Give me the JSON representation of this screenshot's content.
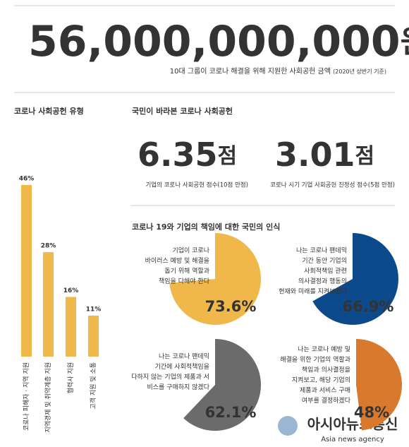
{
  "headline": {
    "number": "56,000,000,000",
    "unit": "원",
    "caption": "10대 그룹이 코로나 해결을 위해 지원한 사회공헌 금액",
    "note": "(2020년 상반기 기준)"
  },
  "survey_title": "국민이 바라본 코로나 사회공헌",
  "scores": [
    {
      "number": "6.35",
      "unit": "점",
      "label": "기업의 코로나 사회공헌 점수(10점 만점)"
    },
    {
      "number": "3.01",
      "unit": "점",
      "label": "코로나 시기 기업 사회공헌 진정성 점수(5점 만점)"
    }
  ],
  "perception_title": "코로나 19와 기업의 책임에 대한 국민의 인식",
  "chart_data": [
    {
      "type": "bar",
      "title": "코로나 사회공헌 유형",
      "categories": [
        "코로나 피해자 · 지역 지원",
        "지역경제 및 취약계층 지원",
        "협력사 지원",
        "고객 지원 및 소통"
      ],
      "values": [
        46,
        28,
        16,
        11
      ],
      "value_labels": [
        "46%",
        "28%",
        "16%",
        "11%"
      ],
      "color": "#f0b84a"
    },
    {
      "type": "pie",
      "annotation": [
        "기업이 코로나",
        "바이러스 예방 및 해결을",
        "돕기 위해 역할과",
        "책임을 다해야 한다"
      ],
      "values": [
        73.6
      ],
      "value_labels": [
        "73.6%"
      ],
      "color": "#f0b84a"
    },
    {
      "type": "pie",
      "annotation": [
        "나는 코로나 팬데믹",
        "기간 동안 기업의",
        "사회적책임 관련",
        "의사결정과 행동의",
        "현재와 미래를 지켜보겠다"
      ],
      "values": [
        66.9
      ],
      "value_labels": [
        "66.9%"
      ],
      "color": "#0d4a8b"
    },
    {
      "type": "pie",
      "annotation": [
        "나는 코로나 팬데믹",
        "기간에 사회적책임을",
        "다하지 않는 기업의 제품과 서",
        "비스를 구매하지 않겠다"
      ],
      "values": [
        62.1
      ],
      "value_labels": [
        "62.1%"
      ],
      "color": "#6b6b6b"
    },
    {
      "type": "pie",
      "annotation": [
        "나는 코로나 예방 및",
        "해결을 위한 기업의 역할과",
        "책임과 의사결정을",
        "지켜보고, 해당 기업의",
        "제품과 서비스 구매",
        "여부를 결정하겠다"
      ],
      "values": [
        48
      ],
      "value_labels": [
        "48%"
      ],
      "color": "#d9792e"
    }
  ],
  "watermark": {
    "name": "아시아뉴스통신",
    "sub": "Asia news agency"
  }
}
